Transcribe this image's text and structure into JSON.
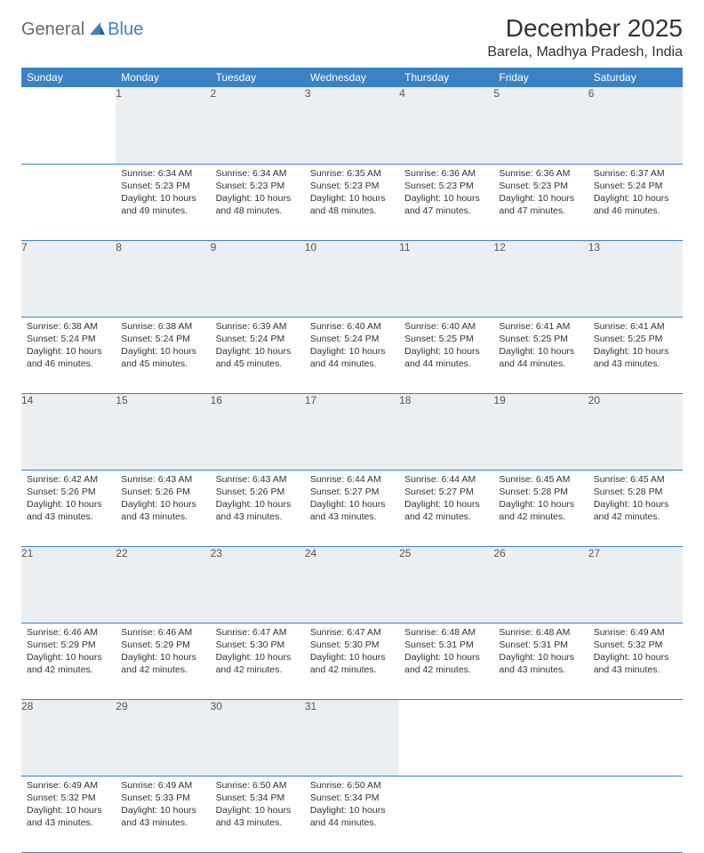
{
  "brand": {
    "part1": "General",
    "part2": "Blue"
  },
  "title": "December 2025",
  "location": "Barela, Madhya Pradesh, India",
  "colors": {
    "header_bg": "#3b82c4",
    "header_text": "#ffffff",
    "daynum_bg": "#eceff1",
    "border": "#3b82c4",
    "logo_gray": "#6b6b6b",
    "logo_blue": "#3b82c4"
  },
  "day_names": [
    "Sunday",
    "Monday",
    "Tuesday",
    "Wednesday",
    "Thursday",
    "Friday",
    "Saturday"
  ],
  "weeks": [
    [
      null,
      {
        "n": "1",
        "sr": "Sunrise: 6:34 AM",
        "ss": "Sunset: 5:23 PM",
        "dl": "Daylight: 10 hours and 49 minutes."
      },
      {
        "n": "2",
        "sr": "Sunrise: 6:34 AM",
        "ss": "Sunset: 5:23 PM",
        "dl": "Daylight: 10 hours and 48 minutes."
      },
      {
        "n": "3",
        "sr": "Sunrise: 6:35 AM",
        "ss": "Sunset: 5:23 PM",
        "dl": "Daylight: 10 hours and 48 minutes."
      },
      {
        "n": "4",
        "sr": "Sunrise: 6:36 AM",
        "ss": "Sunset: 5:23 PM",
        "dl": "Daylight: 10 hours and 47 minutes."
      },
      {
        "n": "5",
        "sr": "Sunrise: 6:36 AM",
        "ss": "Sunset: 5:23 PM",
        "dl": "Daylight: 10 hours and 47 minutes."
      },
      {
        "n": "6",
        "sr": "Sunrise: 6:37 AM",
        "ss": "Sunset: 5:24 PM",
        "dl": "Daylight: 10 hours and 46 minutes."
      }
    ],
    [
      {
        "n": "7",
        "sr": "Sunrise: 6:38 AM",
        "ss": "Sunset: 5:24 PM",
        "dl": "Daylight: 10 hours and 46 minutes."
      },
      {
        "n": "8",
        "sr": "Sunrise: 6:38 AM",
        "ss": "Sunset: 5:24 PM",
        "dl": "Daylight: 10 hours and 45 minutes."
      },
      {
        "n": "9",
        "sr": "Sunrise: 6:39 AM",
        "ss": "Sunset: 5:24 PM",
        "dl": "Daylight: 10 hours and 45 minutes."
      },
      {
        "n": "10",
        "sr": "Sunrise: 6:40 AM",
        "ss": "Sunset: 5:24 PM",
        "dl": "Daylight: 10 hours and 44 minutes."
      },
      {
        "n": "11",
        "sr": "Sunrise: 6:40 AM",
        "ss": "Sunset: 5:25 PM",
        "dl": "Daylight: 10 hours and 44 minutes."
      },
      {
        "n": "12",
        "sr": "Sunrise: 6:41 AM",
        "ss": "Sunset: 5:25 PM",
        "dl": "Daylight: 10 hours and 44 minutes."
      },
      {
        "n": "13",
        "sr": "Sunrise: 6:41 AM",
        "ss": "Sunset: 5:25 PM",
        "dl": "Daylight: 10 hours and 43 minutes."
      }
    ],
    [
      {
        "n": "14",
        "sr": "Sunrise: 6:42 AM",
        "ss": "Sunset: 5:26 PM",
        "dl": "Daylight: 10 hours and 43 minutes."
      },
      {
        "n": "15",
        "sr": "Sunrise: 6:43 AM",
        "ss": "Sunset: 5:26 PM",
        "dl": "Daylight: 10 hours and 43 minutes."
      },
      {
        "n": "16",
        "sr": "Sunrise: 6:43 AM",
        "ss": "Sunset: 5:26 PM",
        "dl": "Daylight: 10 hours and 43 minutes."
      },
      {
        "n": "17",
        "sr": "Sunrise: 6:44 AM",
        "ss": "Sunset: 5:27 PM",
        "dl": "Daylight: 10 hours and 43 minutes."
      },
      {
        "n": "18",
        "sr": "Sunrise: 6:44 AM",
        "ss": "Sunset: 5:27 PM",
        "dl": "Daylight: 10 hours and 42 minutes."
      },
      {
        "n": "19",
        "sr": "Sunrise: 6:45 AM",
        "ss": "Sunset: 5:28 PM",
        "dl": "Daylight: 10 hours and 42 minutes."
      },
      {
        "n": "20",
        "sr": "Sunrise: 6:45 AM",
        "ss": "Sunset: 5:28 PM",
        "dl": "Daylight: 10 hours and 42 minutes."
      }
    ],
    [
      {
        "n": "21",
        "sr": "Sunrise: 6:46 AM",
        "ss": "Sunset: 5:29 PM",
        "dl": "Daylight: 10 hours and 42 minutes."
      },
      {
        "n": "22",
        "sr": "Sunrise: 6:46 AM",
        "ss": "Sunset: 5:29 PM",
        "dl": "Daylight: 10 hours and 42 minutes."
      },
      {
        "n": "23",
        "sr": "Sunrise: 6:47 AM",
        "ss": "Sunset: 5:30 PM",
        "dl": "Daylight: 10 hours and 42 minutes."
      },
      {
        "n": "24",
        "sr": "Sunrise: 6:47 AM",
        "ss": "Sunset: 5:30 PM",
        "dl": "Daylight: 10 hours and 42 minutes."
      },
      {
        "n": "25",
        "sr": "Sunrise: 6:48 AM",
        "ss": "Sunset: 5:31 PM",
        "dl": "Daylight: 10 hours and 42 minutes."
      },
      {
        "n": "26",
        "sr": "Sunrise: 6:48 AM",
        "ss": "Sunset: 5:31 PM",
        "dl": "Daylight: 10 hours and 43 minutes."
      },
      {
        "n": "27",
        "sr": "Sunrise: 6:49 AM",
        "ss": "Sunset: 5:32 PM",
        "dl": "Daylight: 10 hours and 43 minutes."
      }
    ],
    [
      {
        "n": "28",
        "sr": "Sunrise: 6:49 AM",
        "ss": "Sunset: 5:32 PM",
        "dl": "Daylight: 10 hours and 43 minutes."
      },
      {
        "n": "29",
        "sr": "Sunrise: 6:49 AM",
        "ss": "Sunset: 5:33 PM",
        "dl": "Daylight: 10 hours and 43 minutes."
      },
      {
        "n": "30",
        "sr": "Sunrise: 6:50 AM",
        "ss": "Sunset: 5:34 PM",
        "dl": "Daylight: 10 hours and 43 minutes."
      },
      {
        "n": "31",
        "sr": "Sunrise: 6:50 AM",
        "ss": "Sunset: 5:34 PM",
        "dl": "Daylight: 10 hours and 44 minutes."
      },
      null,
      null,
      null
    ]
  ]
}
